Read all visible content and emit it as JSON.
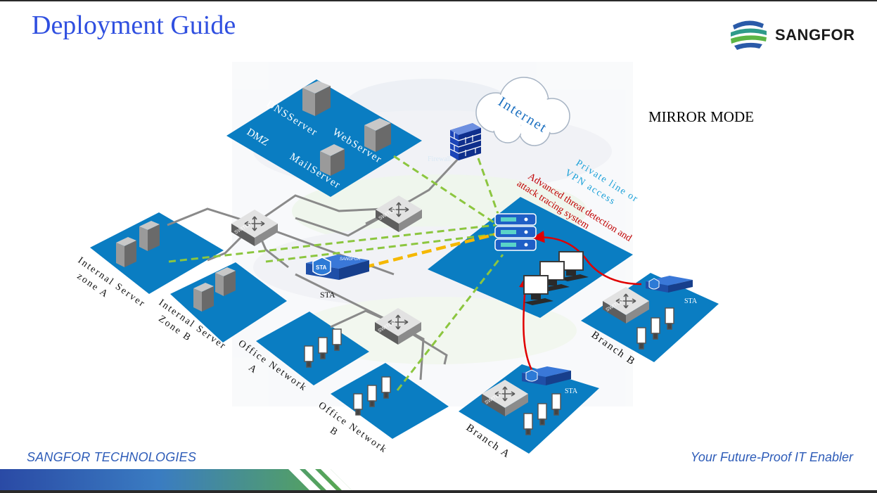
{
  "slide": {
    "title": "Deployment Guide",
    "brand": "SANGFOR",
    "mode": "MIRROR MODE",
    "footer_left": "SANGFOR TECHNOLOGIES",
    "footer_right": "Your Future-Proof IT Enabler"
  },
  "diagram": {
    "internet": "Internet",
    "dmz": "DMZ",
    "dns_server": "DNSServer",
    "web_server": "WebServer",
    "mail_server": "MailServer",
    "firewall": "Firewall",
    "switch": "SWITCH",
    "sta": "STA",
    "sta_brand": "SANGFOR",
    "private_line_1": "Private line or",
    "private_line_2": "VPN access",
    "platform_1": "Advanced threat detection and",
    "platform_2": "attack tracing system",
    "zones": {
      "server_a_1": "Internal Server",
      "server_a_2": "zone A",
      "server_b_1": "Internal Server",
      "server_b_2": "Zone B",
      "office_a_1": "Office Network",
      "office_a_2": "A",
      "office_b_1": "Office Network",
      "office_b_2": "B",
      "branch_a": "Branch A",
      "branch_b": "Branch B"
    }
  },
  "colors": {
    "title": "#2f4fe0",
    "tile": "#0a7dc2",
    "green_dash": "#8cc63f",
    "orange_dash": "#f5b800",
    "red_arrow": "#e00000",
    "cyan_text": "#1aa0d8",
    "red_text": "#c00000"
  }
}
